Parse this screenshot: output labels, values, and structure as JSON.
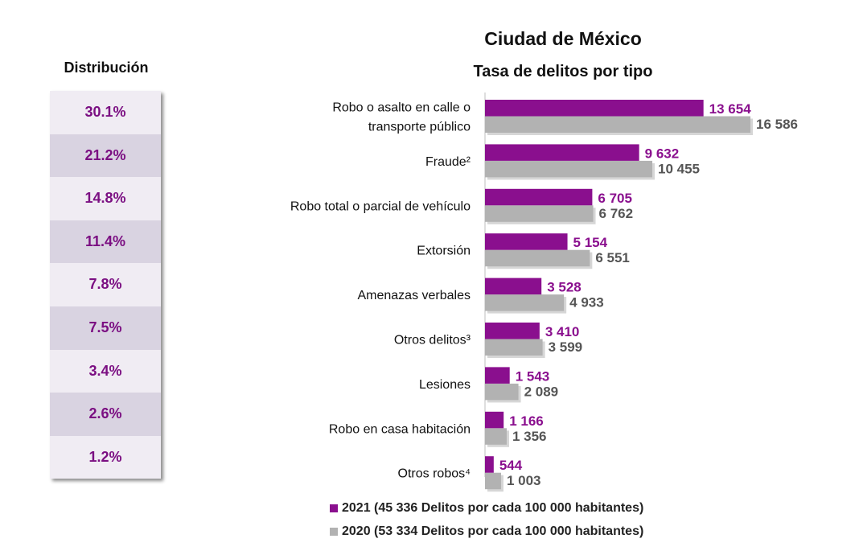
{
  "distribution": {
    "title": "Distribución",
    "values": [
      "30.1%",
      "21.2%",
      "14.8%",
      "11.4%",
      "7.8%",
      "7.5%",
      "3.4%",
      "2.6%",
      "1.2%"
    ]
  },
  "colors": {
    "series_2021": "#8a0f8e",
    "series_2020": "#b2b2b2"
  },
  "chart_data": {
    "type": "bar",
    "orientation": "horizontal",
    "title": "Ciudad de México",
    "subtitle": "Tasa de delitos por tipo",
    "categories": [
      [
        "Robo o asalto en calle o",
        "transporte público"
      ],
      [
        "Fraude²"
      ],
      [
        "Robo total o parcial de vehículo"
      ],
      [
        "Extorsión"
      ],
      [
        "Amenazas verbales"
      ],
      [
        "Otros delitos³"
      ],
      [
        "Lesiones"
      ],
      [
        "Robo en casa habitación"
      ],
      [
        "Otros robos⁴"
      ]
    ],
    "series": [
      {
        "name": "2021 (45 336 Delitos por cada 100 000 habitantes)",
        "values": [
          13654,
          9632,
          6705,
          5154,
          3528,
          3410,
          1543,
          1166,
          544
        ],
        "labels": [
          "13 654",
          "9 632",
          "6 705",
          "5 154",
          "3 528",
          "3 410",
          "1 543",
          "1 166",
          "544"
        ]
      },
      {
        "name": "2020 (53 334 Delitos por cada 100 000 habitantes)",
        "values": [
          16586,
          10455,
          6762,
          6551,
          4933,
          3599,
          2089,
          1356,
          1003
        ],
        "labels": [
          "16 586",
          "10 455",
          "6 762",
          "6 551",
          "4 933",
          "3 599",
          "2 089",
          "1 356",
          "1 003"
        ]
      }
    ],
    "legend": "bottom"
  }
}
